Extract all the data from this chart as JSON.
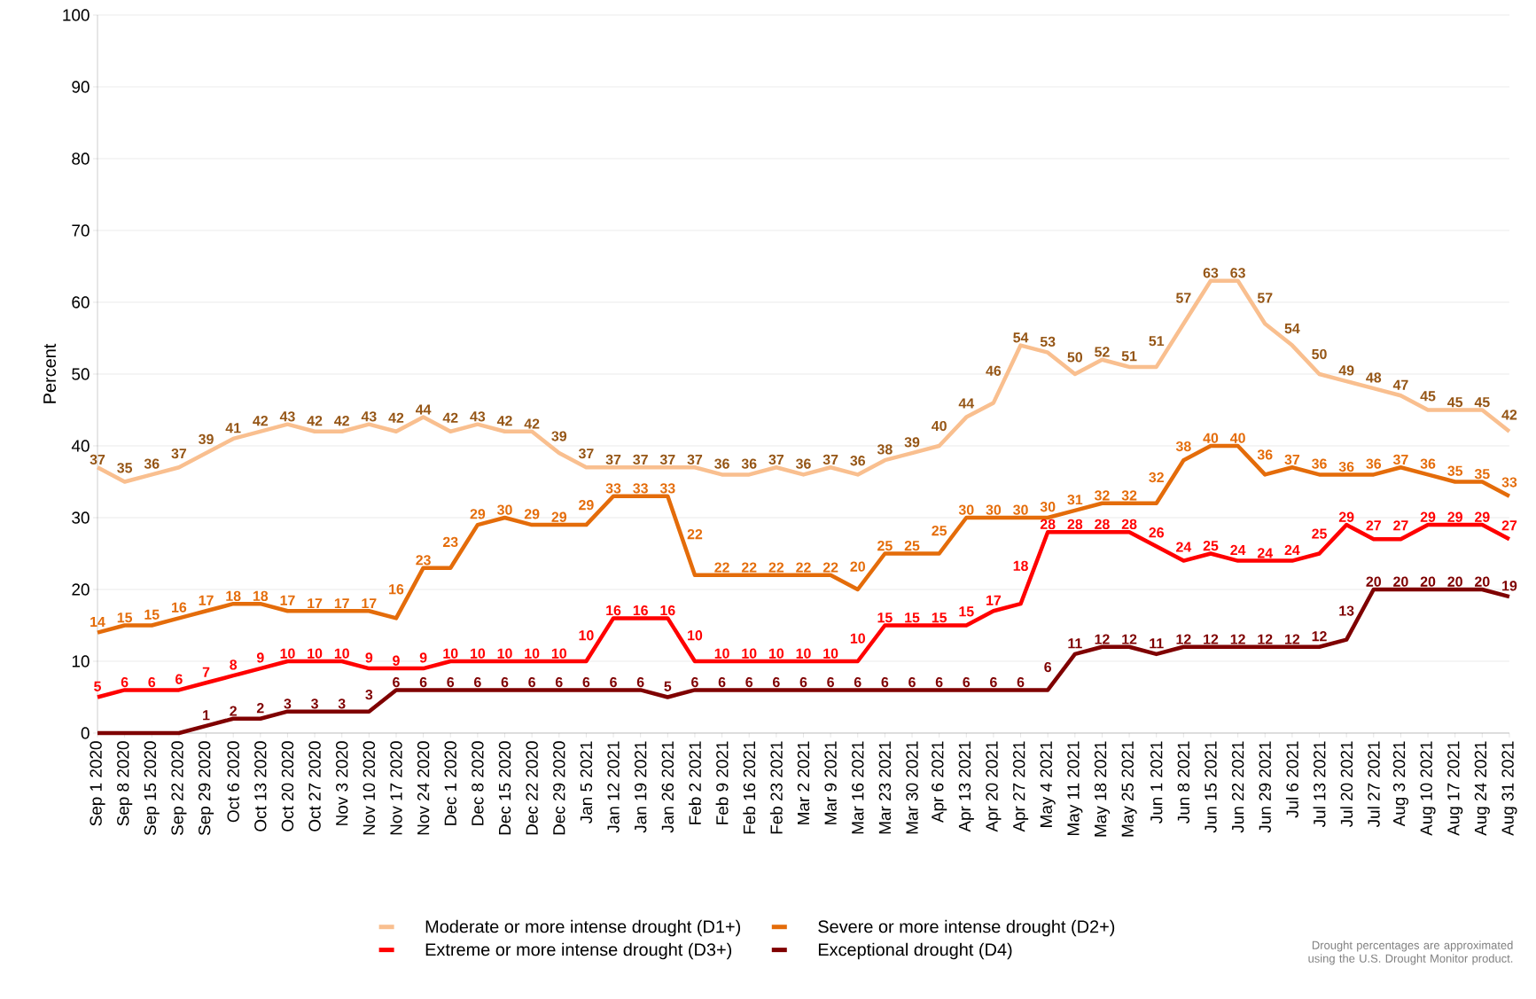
{
  "chart_data": {
    "type": "line",
    "ylabel": "Percent",
    "categories": [
      "Sep 1 2020",
      "Sep 8 2020",
      "Sep 15 2020",
      "Sep 22 2020",
      "Sep 29 2020",
      "Oct 6 2020",
      "Oct 13 2020",
      "Oct 20 2020",
      "Oct 27 2020",
      "Nov 3 2020",
      "Nov 10 2020",
      "Nov 17 2020",
      "Nov 24 2020",
      "Dec 1 2020",
      "Dec 8 2020",
      "Dec 15 2020",
      "Dec 22 2020",
      "Dec 29 2020",
      "Jan 5 2021",
      "Jan 12 2021",
      "Jan 19 2021",
      "Jan 26 2021",
      "Feb 2 2021",
      "Feb 9 2021",
      "Feb 16 2021",
      "Feb 23 2021",
      "Mar 2 2021",
      "Mar 9 2021",
      "Mar 16 2021",
      "Mar 23 2021",
      "Mar 30 2021",
      "Apr 6 2021",
      "Apr 13 2021",
      "Apr 20 2021",
      "Apr 27 2021",
      "May 4 2021",
      "May 11 2021",
      "May 18 2021",
      "May 25 2021",
      "Jun 1 2021",
      "Jun 8 2021",
      "Jun 15 2021",
      "Jun 22 2021",
      "Jun 29 2021",
      "Jul 6 2021",
      "Jul 13 2021",
      "Jul 20 2021",
      "Jul 27 2021",
      "Aug 3 2021",
      "Aug 10 2021",
      "Aug 17 2021",
      "Aug 24 2021",
      "Aug 31 2021"
    ],
    "series": [
      {
        "name": "Moderate or more intense drought (D1+)",
        "color": "#f9bf8f",
        "values": [
          37,
          35,
          36,
          37,
          39,
          41,
          42,
          43,
          42,
          42,
          43,
          42,
          44,
          42,
          43,
          42,
          42,
          39,
          37,
          37,
          37,
          37,
          37,
          36,
          36,
          37,
          36,
          37,
          36,
          38,
          39,
          40,
          44,
          46,
          54,
          53,
          50,
          52,
          51,
          51,
          57,
          63,
          63,
          57,
          54,
          50,
          49,
          48,
          47,
          45,
          45,
          45,
          42
        ]
      },
      {
        "name": "Severe or more intense drought (D2+)",
        "color": "#e46c0a",
        "values": [
          14,
          15,
          15,
          16,
          17,
          18,
          18,
          17,
          17,
          17,
          17,
          16,
          23,
          23,
          29,
          30,
          29,
          29,
          29,
          33,
          33,
          33,
          22,
          22,
          22,
          22,
          22,
          22,
          20,
          25,
          25,
          25,
          30,
          30,
          30,
          30,
          31,
          32,
          32,
          32,
          38,
          40,
          40,
          36,
          37,
          36,
          36,
          36,
          37,
          36,
          35,
          35,
          33
        ]
      },
      {
        "name": "Extreme or more intense drought (D3+)",
        "color": "#ff0000",
        "values": [
          5,
          6,
          6,
          6,
          7,
          8,
          9,
          10,
          10,
          10,
          9,
          9,
          9,
          10,
          10,
          10,
          10,
          10,
          10,
          16,
          16,
          16,
          10,
          10,
          10,
          10,
          10,
          10,
          10,
          15,
          15,
          15,
          15,
          17,
          18,
          28,
          28,
          28,
          28,
          26,
          24,
          25,
          24,
          24,
          24,
          25,
          29,
          27,
          27,
          29,
          29,
          29,
          27
        ]
      },
      {
        "name": "Exceptional drought (D4)",
        "color": "#7f0000",
        "values": [
          0,
          0,
          0,
          0,
          1,
          2,
          2,
          3,
          3,
          3,
          3,
          6,
          6,
          6,
          6,
          6,
          6,
          6,
          6,
          6,
          6,
          5,
          6,
          6,
          6,
          6,
          6,
          6,
          6,
          6,
          6,
          6,
          6,
          6,
          6,
          6,
          11,
          12,
          12,
          11,
          12,
          12,
          12,
          12,
          12,
          12,
          13,
          20,
          20,
          20,
          20,
          20,
          19
        ],
        "value_labels": [
          null,
          null,
          null,
          null,
          "1",
          "2",
          "2",
          "3",
          "3",
          "3",
          "3",
          "6",
          "6",
          "6",
          "6",
          "6",
          "6",
          "6",
          "6",
          "6",
          "6",
          "5",
          "6",
          "6",
          "6",
          "6",
          "6",
          "6",
          "6",
          "6",
          "6",
          "6",
          "6",
          "6",
          "6",
          "6",
          "11",
          "12",
          "12",
          "11",
          "12",
          "12",
          "12",
          "12",
          "12",
          "12",
          "13",
          "20",
          "20",
          "20",
          "20",
          "20",
          "19"
        ]
      }
    ],
    "data_labels": true,
    "ylim": [
      0,
      100
    ],
    "yticks": [
      0,
      10,
      20,
      30,
      40,
      50,
      60,
      70,
      80,
      90,
      100
    ],
    "grid": "y",
    "legend": "bottom",
    "marker": "none",
    "line_style": "solid",
    "annotations": [
      "Drought percentages are approximated using the U.S. Drought Monitor product."
    ]
  }
}
